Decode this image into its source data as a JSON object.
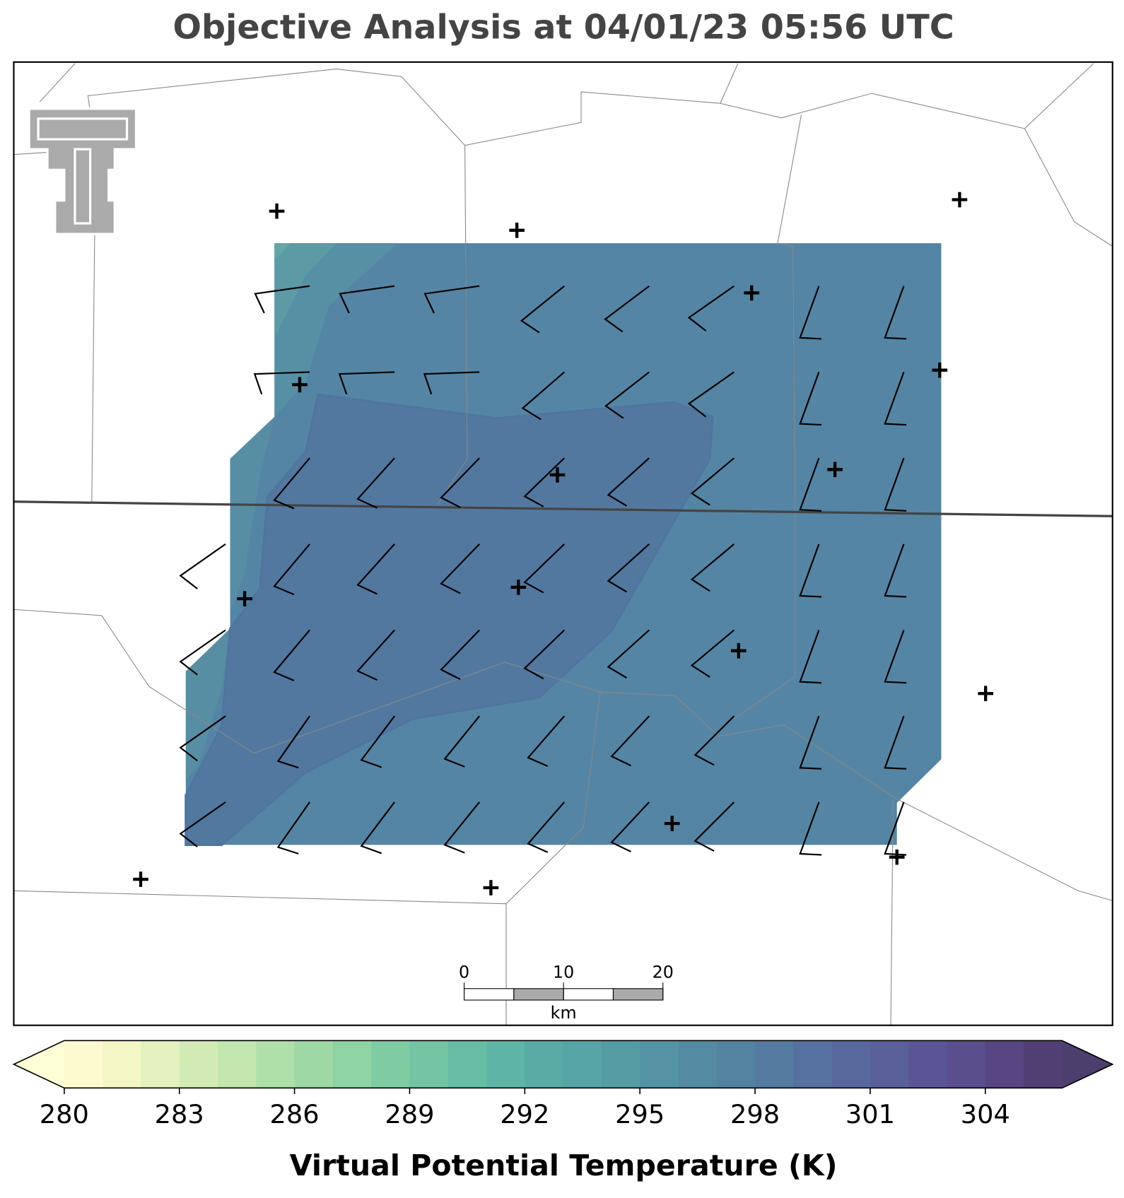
{
  "title": "Objective Analysis at 04/01/23 05:56 UTC",
  "colorbar": {
    "label": "Virtual Potential Temperature (K)",
    "ticks": [
      280,
      283,
      286,
      289,
      292,
      295,
      298,
      301,
      304
    ],
    "levels": [
      280,
      281,
      282,
      283,
      284,
      285,
      286,
      287,
      288,
      289,
      290,
      291,
      292,
      293,
      294,
      295,
      296,
      297,
      298,
      299,
      300,
      301,
      302,
      303,
      304,
      305,
      306
    ],
    "colors": [
      "#fbfbcf",
      "#f2f7c5",
      "#e2f1bd",
      "#d2ebb5",
      "#c2e6ae",
      "#b0e0a9",
      "#9ed9a5",
      "#8dd3a3",
      "#7fcba2",
      "#72c4a3",
      "#67bda4",
      "#5fb5a5",
      "#59aca5",
      "#56a4a5",
      "#549ba4",
      "#5493a3",
      "#548aa2",
      "#5482a1",
      "#557aa0",
      "#56719f",
      "#58689d",
      "#595f99",
      "#5a5696",
      "#5a4e8c",
      "#574681",
      "#513f74"
    ],
    "under_color": "#fefed6",
    "over_color": "#4b3f6e"
  },
  "scalebar": {
    "ticks": [
      0,
      10,
      20
    ],
    "unit": "km"
  }
}
